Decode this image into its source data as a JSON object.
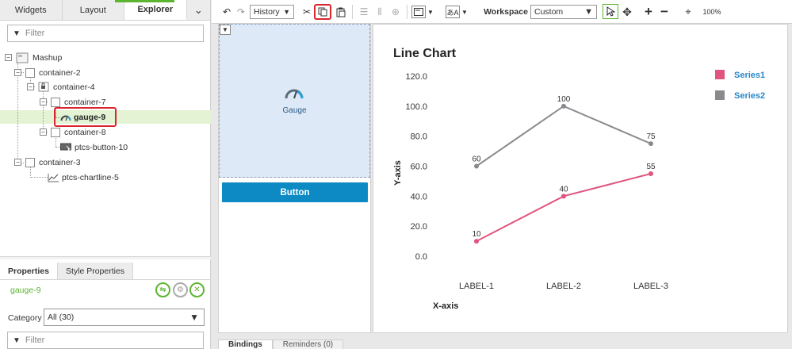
{
  "left_tabs": [
    "Widgets",
    "Layout",
    "Explorer"
  ],
  "filter_placeholder": "Filter",
  "tree": {
    "mashup": "Mashup",
    "container2": "container-2",
    "container4": "container-4",
    "container7": "container-7",
    "gauge9": "gauge-9",
    "container8": "container-8",
    "button10": "ptcs-button-10",
    "container3": "container-3",
    "chartline5": "ptcs-chartline-5"
  },
  "properties": {
    "tabs": [
      "Properties",
      "Style Properties"
    ],
    "selected": "gauge-9",
    "category_label": "Category",
    "category_value": "All (30)",
    "filter_placeholder": "Filter"
  },
  "toolbar": {
    "history": "History",
    "workspace_label": "Workspace",
    "workspace_value": "Custom",
    "zoom": "100%"
  },
  "canvas": {
    "gauge_label": "Gauge",
    "button_label": "Button"
  },
  "bottom_tabs": [
    "Bindings",
    "Reminders (0)"
  ],
  "colors": {
    "series1": "#e0547e",
    "series2": "#8a8a8e",
    "accent": "#5cb531",
    "button": "#0d8ac3"
  },
  "chart_data": {
    "type": "line",
    "title": "Line Chart",
    "xlabel": "X-axis",
    "ylabel": "Y-axis",
    "categories": [
      "LABEL-1",
      "LABEL-2",
      "LABEL-3"
    ],
    "ylim": [
      0,
      120
    ],
    "yticks": [
      "120.0",
      "100.0",
      "80.0",
      "60.0",
      "40.0",
      "20.0",
      "0.0"
    ],
    "series": [
      {
        "name": "Series1",
        "values": [
          10,
          40,
          55
        ]
      },
      {
        "name": "Series2",
        "values": [
          60,
          100,
          75
        ]
      }
    ],
    "legend": "top-right"
  }
}
